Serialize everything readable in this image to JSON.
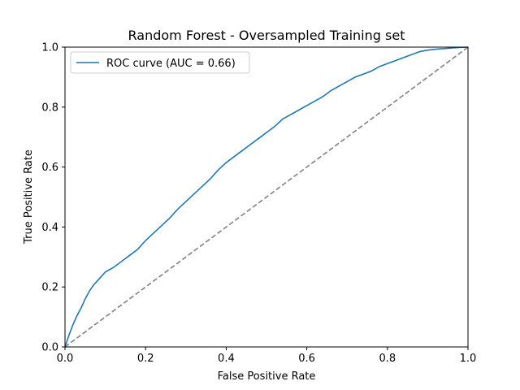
{
  "chart_data": {
    "type": "line",
    "title": "Random Forest - Oversampled Training set",
    "xlabel": "False Positive Rate",
    "ylabel": "True Positive Rate",
    "xlim": [
      0.0,
      1.0
    ],
    "ylim": [
      0.0,
      1.0
    ],
    "xticks": [
      "0.0",
      "0.2",
      "0.4",
      "0.6",
      "0.8",
      "1.0"
    ],
    "yticks": [
      "0.0",
      "0.2",
      "0.4",
      "0.6",
      "0.8",
      "1.0"
    ],
    "grid": false,
    "legend_position": "top-left",
    "series": [
      {
        "name": "ROC curve (AUC = 0.66)",
        "color": "#1f77b4",
        "style": "solid",
        "x": [
          0.0,
          0.01,
          0.02,
          0.03,
          0.04,
          0.05,
          0.06,
          0.07,
          0.08,
          0.09,
          0.1,
          0.12,
          0.14,
          0.16,
          0.18,
          0.2,
          0.22,
          0.24,
          0.26,
          0.28,
          0.3,
          0.32,
          0.34,
          0.36,
          0.38,
          0.4,
          0.42,
          0.44,
          0.46,
          0.48,
          0.5,
          0.52,
          0.54,
          0.56,
          0.58,
          0.6,
          0.62,
          0.64,
          0.66,
          0.68,
          0.7,
          0.72,
          0.74,
          0.76,
          0.78,
          0.8,
          0.82,
          0.84,
          0.86,
          0.88,
          0.9,
          0.92,
          0.94,
          0.96,
          0.98,
          1.0
        ],
        "y": [
          0.0,
          0.04,
          0.075,
          0.105,
          0.13,
          0.16,
          0.185,
          0.205,
          0.22,
          0.235,
          0.25,
          0.265,
          0.285,
          0.305,
          0.325,
          0.355,
          0.38,
          0.405,
          0.43,
          0.46,
          0.485,
          0.51,
          0.535,
          0.56,
          0.59,
          0.615,
          0.635,
          0.655,
          0.675,
          0.695,
          0.715,
          0.735,
          0.76,
          0.775,
          0.79,
          0.805,
          0.82,
          0.835,
          0.855,
          0.87,
          0.885,
          0.9,
          0.91,
          0.92,
          0.935,
          0.945,
          0.955,
          0.965,
          0.975,
          0.985,
          0.99,
          0.993,
          0.995,
          0.997,
          0.999,
          1.0
        ]
      },
      {
        "name": "",
        "color": "#808080",
        "style": "dashed",
        "x": [
          0.0,
          1.0
        ],
        "y": [
          0.0,
          1.0
        ]
      }
    ]
  }
}
